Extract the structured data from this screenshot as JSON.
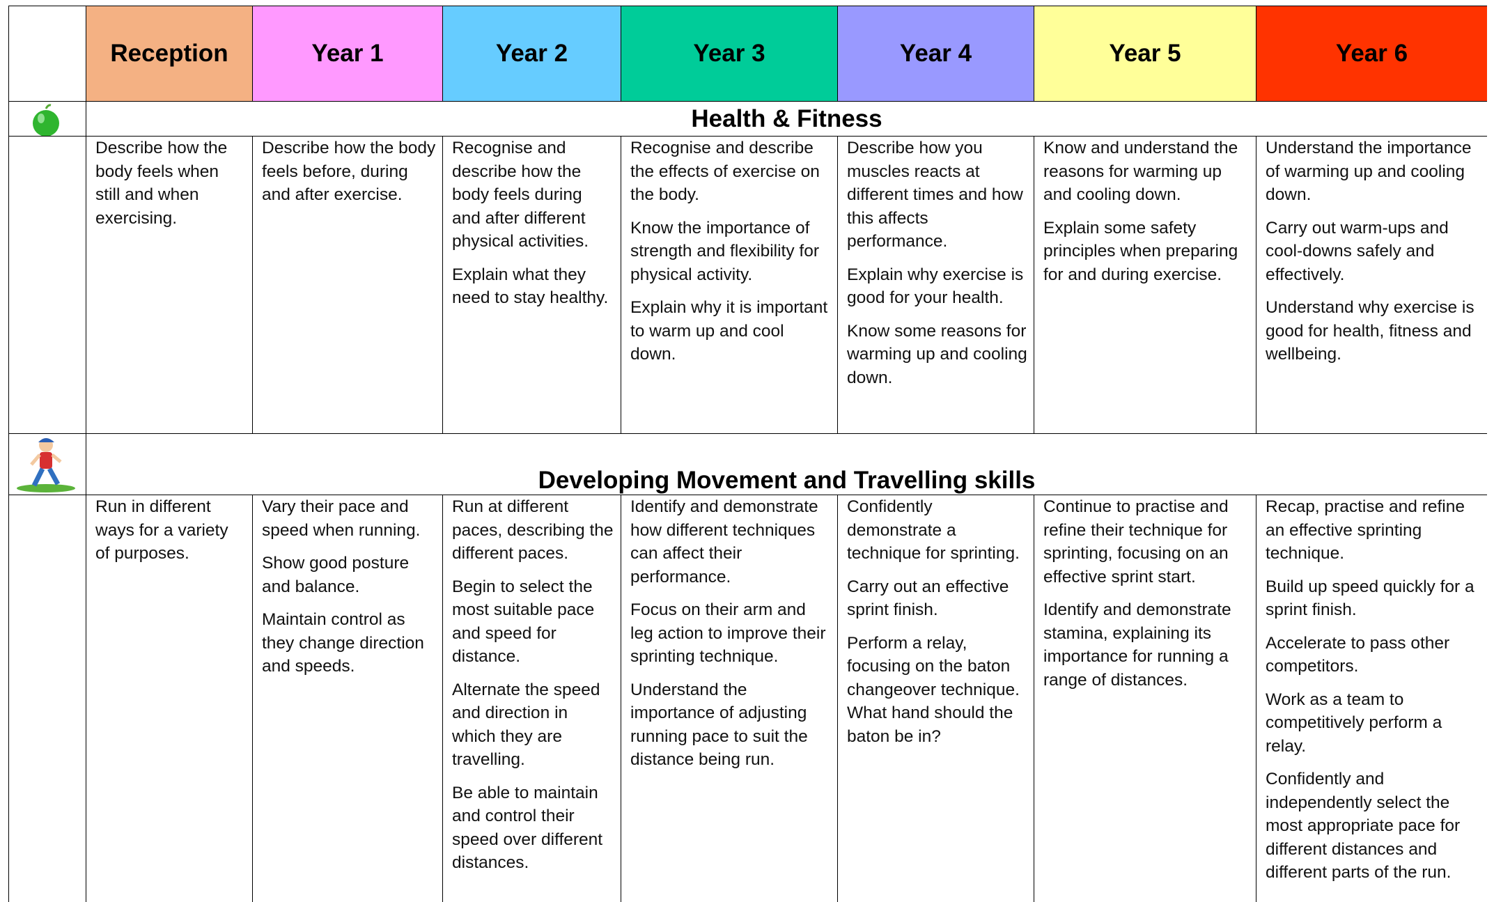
{
  "header": {
    "columns": [
      {
        "label": "Reception",
        "color": "#F4B183"
      },
      {
        "label": "Year 1",
        "color": "#FF99FF"
      },
      {
        "label": "Year 2",
        "color": "#66CCFF"
      },
      {
        "label": "Year 3",
        "color": "#00CC99"
      },
      {
        "label": "Year 4",
        "color": "#9999FF"
      },
      {
        "label": "Year 5",
        "color": "#FFFF99"
      },
      {
        "label": "Year 6",
        "color": "#FF3300"
      }
    ]
  },
  "sections": [
    {
      "title": "Health & Fitness",
      "cells": [
        [
          "Describe how the body feels when still and when exercising."
        ],
        [
          "Describe how the body feels before, during and after exercise."
        ],
        [
          "Recognise and describe how the body feels during and after different physical activities.",
          "Explain what they need to stay healthy."
        ],
        [
          "Recognise and describe the effects of exercise on the body.",
          "Know the importance of strength and flexibility for physical activity.",
          "Explain why it is important to warm up and cool down."
        ],
        [
          "Describe how you muscles reacts at different times and how this affects performance.",
          "Explain why exercise is good for your health.",
          "Know some reasons for warming up and cooling down."
        ],
        [
          "Know and understand the reasons for warming up and cooling down.",
          "Explain some safety principles when preparing for and during exercise."
        ],
        [
          "Understand the importance of warming up and cooling down.",
          "Carry out warm-ups and cool-downs safely and effectively.",
          "Understand why exercise is good for health, fitness and wellbeing."
        ]
      ]
    },
    {
      "title": "Developing Movement and Travelling skills",
      "cells": [
        [
          "Run in different ways for a variety of purposes."
        ],
        [
          "Vary their pace and speed when running.",
          "Show good posture and balance.",
          "Maintain control as they change direction and speeds."
        ],
        [
          "Run at different paces, describing the different paces.",
          "Begin to select the most suitable pace and speed for distance.",
          "Alternate the speed and direction in which they are travelling.",
          "Be able to maintain and control their speed over different distances."
        ],
        [
          "Identify and demonstrate how different techniques can affect their performance.",
          "Focus on their arm and leg action to improve their sprinting technique.",
          "Understand the importance of adjusting running pace to suit the distance being run."
        ],
        [
          "Confidently demonstrate a technique for sprinting.",
          "Carry out an effective sprint finish.",
          "Perform a relay, focusing on the baton changeover technique. What hand should the baton be in?"
        ],
        [
          "Continue to practise and refine their technique for sprinting, focusing on an effective sprint start.",
          "Identify and demonstrate stamina, explaining its importance for running a range of distances."
        ],
        [
          "Recap, practise and refine an effective sprinting technique.",
          "Build up speed quickly for a sprint finish.",
          "Accelerate to pass other competitors.",
          "Work as a team to competitively perform a relay.",
          "Confidently and independently select the most appropriate pace for different distances and different parts of the run."
        ]
      ]
    }
  ]
}
